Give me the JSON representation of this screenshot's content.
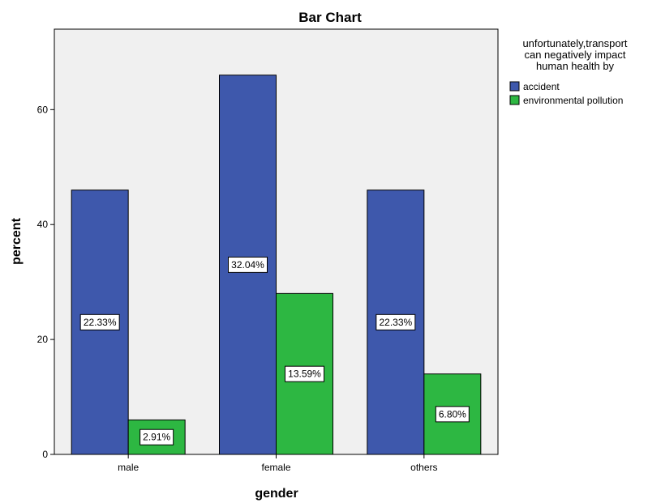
{
  "chart_data": {
    "type": "bar",
    "title": "Bar Chart",
    "xlabel": "gender",
    "ylabel": "percent",
    "categories": [
      "male",
      "female",
      "others"
    ],
    "ylim": [
      0,
      74
    ],
    "yticks": [
      0,
      20,
      40,
      60
    ],
    "grid": false,
    "legend_position": "right",
    "legend_title_lines": [
      "unfortunately,transport",
      "can negatively impact",
      "human health by"
    ],
    "series": [
      {
        "name": "accident",
        "color": "#3e58ac",
        "values": [
          46,
          66,
          46
        ],
        "labels": [
          "22.33%",
          "32.04%",
          "22.33%"
        ]
      },
      {
        "name": "environmental pollution",
        "color": "#2db742",
        "values": [
          6,
          28,
          14
        ],
        "labels": [
          "2.91%",
          "13.59%",
          "6.80%"
        ]
      }
    ],
    "plot_background": "#f0f0f0"
  }
}
